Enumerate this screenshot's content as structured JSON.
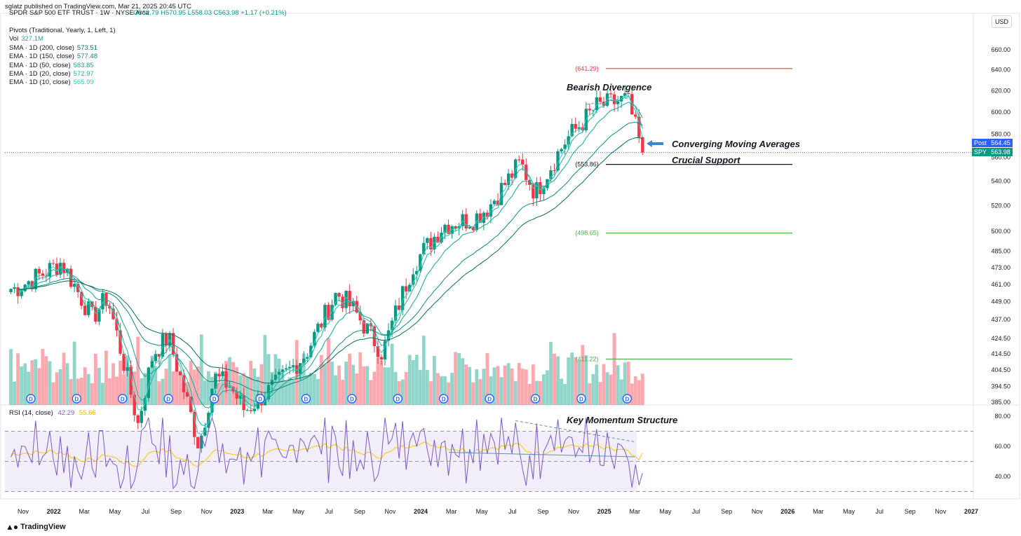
{
  "header": {
    "published": "sglatz published on TradingView.com, Mar 21, 2025 20:45 UTC",
    "symbol": "SPDR S&P 500 ETF TRUST · 1W · NYSE Arca",
    "ohlc": {
      "o": "O562.79",
      "h": "H570.95",
      "l": "L558.03",
      "c": "C563.98",
      "chg": "+1.17 (+0.21%)"
    },
    "currency": "USD"
  },
  "legend": [
    {
      "label": "Pivots (Traditional, Yearly, 1, Left, 1)",
      "value": "",
      "color": "#131722"
    },
    {
      "label": "Vol",
      "value": "327.1M",
      "color": "#22ab94"
    },
    {
      "label": "SMA · 1D (200, close)",
      "value": "573.51",
      "color": "#0b6b5e"
    },
    {
      "label": "EMA · 1D (150, close)",
      "value": "577.48",
      "color": "#0f8a7c"
    },
    {
      "label": "EMA · 1D (50, close)",
      "value": "583.85",
      "color": "#16a595"
    },
    {
      "label": "EMA · 1D (20, close)",
      "value": "572.97",
      "color": "#1cb4a4"
    },
    {
      "label": "EMA · 1D (10, close)",
      "value": "565.99",
      "color": "#33c9c0"
    }
  ],
  "rsi_legend": {
    "label": "RSI (14, close)",
    "value1": "42.29",
    "value2": "55.66",
    "color1": "#7e57c2",
    "color2": "#f7c60a"
  },
  "price_tags": {
    "post_label": "Post",
    "post_value": "564.45",
    "spy_label": "SPY",
    "spy_value": "563.98",
    "post_color": "#2962ff",
    "spy_color": "#089981"
  },
  "annotations": {
    "bearish": "Bearish Divergence",
    "converging": "Converging Moving Averages",
    "support": "Crucial Support",
    "momentum": "Key Momentum Structure"
  },
  "branding": {
    "logo_text": "TradingView"
  },
  "chart_data": {
    "type": "candlestick",
    "timeframe": "1W",
    "price_axis": {
      "ticks": [
        "660.00",
        "640.00",
        "620.00",
        "600.00",
        "580.00",
        "560.00",
        "540.00",
        "520.00",
        "500.00",
        "485.00",
        "473.00",
        "461.00",
        "449.00",
        "437.00",
        "424.50",
        "414.50",
        "404.50",
        "394.50",
        "385.00"
      ],
      "scale": "log"
    },
    "rsi_axis": {
      "ticks": [
        "80.00",
        "60.00",
        "40.00"
      ],
      "levels": [
        70,
        50,
        30
      ]
    },
    "time_axis": [
      "Nov",
      "2022",
      "Mar",
      "May",
      "Jul",
      "Sep",
      "Nov",
      "2023",
      "Mar",
      "May",
      "Jul",
      "Sep",
      "Nov",
      "2024",
      "Mar",
      "May",
      "Jul",
      "Sep",
      "Nov",
      "2025",
      "Mar",
      "May",
      "Jul",
      "Sep",
      "Nov",
      "2026",
      "Mar",
      "May",
      "Jul",
      "Sep",
      "Nov",
      "2027"
    ],
    "pivots": [
      {
        "label": "(641.29)",
        "value": 641.29,
        "color": "#f23645"
      },
      {
        "label": "(553.86)",
        "value": 553.86,
        "color": "#131722"
      },
      {
        "label": "(498.65)",
        "value": 498.65,
        "color": "#4caf50"
      },
      {
        "label": "(411.22)",
        "value": 411.22,
        "color": "#4caf50"
      }
    ],
    "close_path": [
      [
        "2021-10",
        458
      ],
      [
        "2021-12",
        470
      ],
      [
        "2022-01",
        477
      ],
      [
        "2022-03",
        438
      ],
      [
        "2022-04",
        452
      ],
      [
        "2022-06",
        372
      ],
      [
        "2022-07",
        415
      ],
      [
        "2022-08",
        425
      ],
      [
        "2022-10",
        360
      ],
      [
        "2022-11",
        400
      ],
      [
        "2022-12",
        395
      ],
      [
        "2023-01",
        380
      ],
      [
        "2023-03",
        395
      ],
      [
        "2023-05",
        415
      ],
      [
        "2023-07",
        455
      ],
      [
        "2023-08",
        445
      ],
      [
        "2023-10",
        415
      ],
      [
        "2023-12",
        475
      ],
      [
        "2024-02",
        505
      ],
      [
        "2024-04",
        510
      ],
      [
        "2024-05",
        520
      ],
      [
        "2024-07",
        555
      ],
      [
        "2024-08",
        530
      ],
      [
        "2024-10",
        575
      ],
      [
        "2024-12",
        605
      ],
      [
        "2025-02",
        612
      ],
      [
        "2025-03",
        563.98
      ]
    ],
    "series": [
      {
        "name": "SMA · 1D (200, close)",
        "last": 573.51
      },
      {
        "name": "EMA · 1D (150, close)",
        "last": 577.48
      },
      {
        "name": "EMA · 1D (50, close)",
        "last": 583.85
      },
      {
        "name": "EMA · 1D (20, close)",
        "last": 572.97
      },
      {
        "name": "EMA · 1D (10, close)",
        "last": 565.99
      },
      {
        "name": "Vol",
        "last": "327.1M"
      },
      {
        "name": "RSI (14, close)",
        "last": 42.29,
        "ma_last": 55.66
      }
    ],
    "last_close": 563.98,
    "post_price": 564.45
  }
}
